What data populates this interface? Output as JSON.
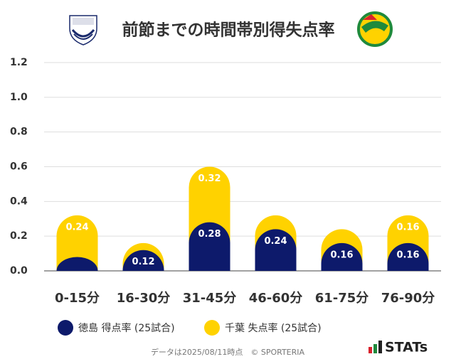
{
  "chart_data": {
    "type": "bar",
    "stacked": true,
    "title": "前節までの時間帯別得失点率",
    "categories": [
      "0-15分",
      "16-30分",
      "31-45分",
      "46-60分",
      "61-75分",
      "76-90分"
    ],
    "series": [
      {
        "name": "徳島 得点率 (25試合)",
        "color": "#0d1a6b",
        "values": [
          0.08,
          0.12,
          0.28,
          0.24,
          0.16,
          0.16
        ],
        "value_labels": [
          null,
          "0.12",
          "0.28",
          "0.24",
          "0.16",
          "0.16"
        ]
      },
      {
        "name": "千葉 失点率 (25試合)",
        "color": "#ffd200",
        "values": [
          0.24,
          0.04,
          0.32,
          0.08,
          0.08,
          0.16
        ],
        "value_labels": [
          "0.24",
          null,
          "0.32",
          null,
          null,
          "0.16"
        ]
      }
    ],
    "ylim": [
      0,
      1.2
    ],
    "yticks": [
      {
        "value": 0,
        "label": "0.0"
      },
      0.2,
      0.4,
      0.6,
      0.8,
      {
        "value": 1,
        "label": "1.0"
      },
      1.2
    ],
    "grid": true,
    "footer": "データは2025/08/11時点　© SPORTERIA",
    "brand": "STATs"
  }
}
